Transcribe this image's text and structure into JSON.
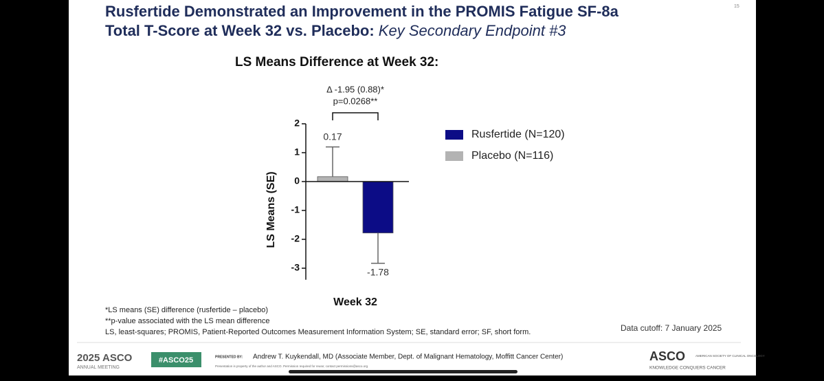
{
  "slide": {
    "title_line1": "Rusfertide Demonstrated an Improvement in the PROMIS Fatigue SF-8a",
    "title_line2": "Total T-Score at Week 32 vs. Placebo: ",
    "title_italic": "Key Secondary Endpoint #3",
    "page_number": "15",
    "footnotes": [
      "*LS means (SE) difference (rusfertide – placebo)",
      "**p-value associated with the LS mean difference",
      "LS, least-squares; PROMIS, Patient-Reported Outcomes Measurement Information System; SE, standard error; SF, short form."
    ],
    "data_cutoff": "Data cutoff: 7 January 2025",
    "meeting_logo": "2025 ASCO",
    "meeting_sub": "ANNUAL MEETING",
    "hashtag": "#ASCO25",
    "presented_by": "PRESENTED BY:",
    "presenter": "Andrew T. Kuykendall, MD (Associate Member, Dept. of Malignant Hematology, Moffitt Cancer Center)",
    "copyright": "Presentation is property of the author and ASCO. Permission required for reuse; contact permissions@asco.org",
    "asco_logo": "ASCO",
    "asco_name": "AMERICAN SOCIETY OF CLINICAL ONCOLOGY",
    "asco_tagline": "KNOWLEDGE CONQUERS CANCER"
  },
  "chart_data": {
    "type": "bar",
    "title": "LS Means Difference at Week 32:",
    "y_label": "LS Means (SE)",
    "categories": [
      "Week 32"
    ],
    "series": [
      {
        "name": "Placebo (N=116)",
        "color": "#b3b3b3",
        "values": [
          0.17
        ],
        "errors": [
          1.03
        ]
      },
      {
        "name": "Rusfertide (N=120)",
        "color": "#0c0c86",
        "values": [
          -1.78
        ],
        "errors": [
          1.05
        ]
      }
    ],
    "legend_order": [
      1,
      0
    ],
    "annotations": [
      "Δ -1.95 (0.88)*",
      "p=0.0268**"
    ],
    "ylim": [
      -3.4,
      2
    ],
    "yticks": [
      -3,
      -2,
      -1,
      0,
      1,
      2
    ],
    "legend": "right"
  }
}
